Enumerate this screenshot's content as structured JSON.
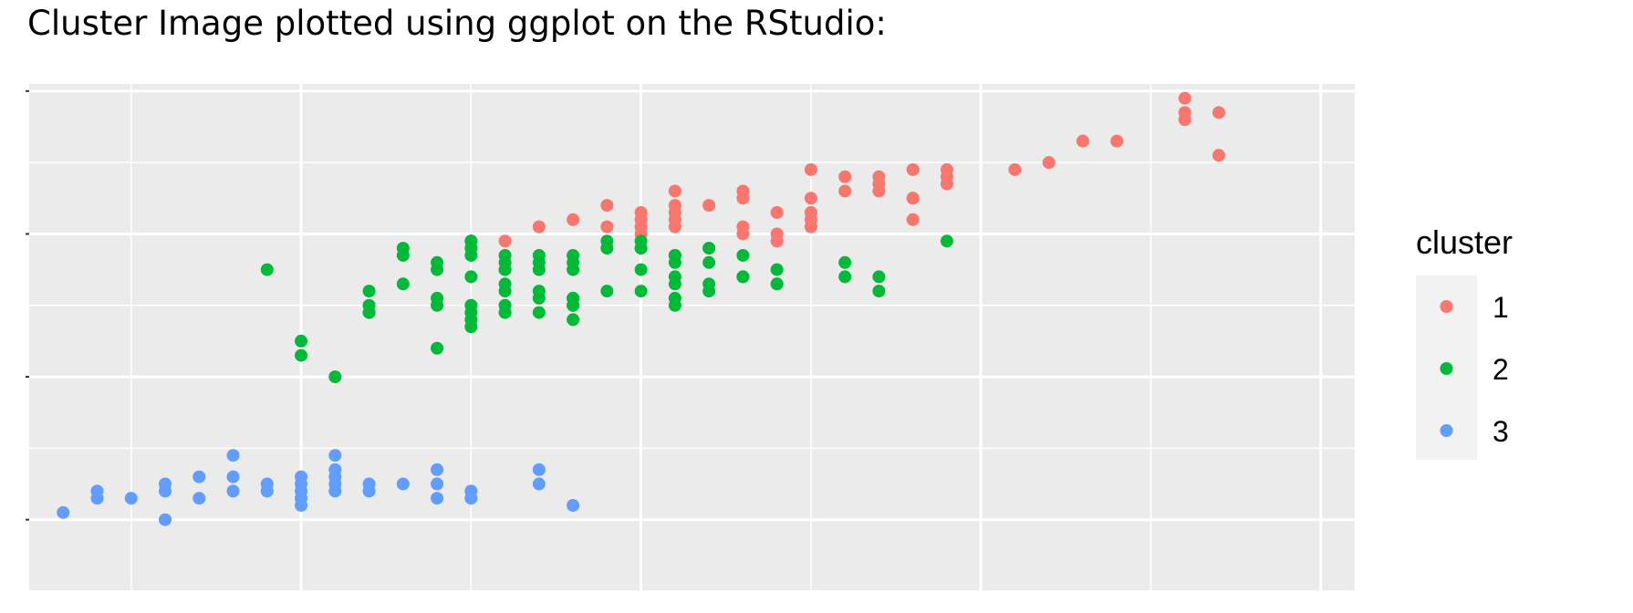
{
  "heading": "Cluster Image plotted using ggplot on the RStudio:",
  "colors": {
    "cluster_1": "#F8766D",
    "cluster_2": "#00BA38",
    "cluster_3": "#619CFF",
    "panel_background": "#EBEBEB",
    "grid": "#FFFFFF"
  },
  "chart_data": {
    "type": "scatter",
    "title": "",
    "xlabel": "",
    "ylabel": "",
    "xlim": [
      4.2,
      8.1
    ],
    "ylim": [
      0.0,
      7.1
    ],
    "x_major_breaks": [
      5,
      6,
      7,
      8
    ],
    "y_major_breaks": [
      1,
      3,
      5,
      7
    ],
    "grid": true,
    "legend": {
      "title": "cluster",
      "position": "right",
      "entries": [
        "1",
        "2",
        "3"
      ]
    },
    "series": [
      {
        "name": "1",
        "color": "#F8766D",
        "points": [
          [
            7.6,
            6.6
          ],
          [
            7.6,
            6.9
          ],
          [
            7.6,
            6.7
          ],
          [
            7.7,
            6.1
          ],
          [
            7.4,
            6.3
          ],
          [
            7.7,
            6.7
          ],
          [
            7.2,
            6.0
          ],
          [
            7.3,
            6.3
          ],
          [
            7.1,
            5.9
          ],
          [
            6.9,
            5.7
          ],
          [
            6.9,
            5.8
          ],
          [
            6.9,
            5.9
          ],
          [
            6.8,
            5.5
          ],
          [
            6.7,
            5.7
          ],
          [
            6.7,
            5.8
          ],
          [
            6.7,
            5.6
          ],
          [
            6.5,
            5.9
          ],
          [
            6.3,
            5.6
          ],
          [
            6.3,
            5.5
          ],
          [
            6.3,
            5.1
          ],
          [
            6.3,
            5.0
          ],
          [
            6.1,
            5.6
          ],
          [
            6.1,
            5.4
          ],
          [
            6.5,
            5.5
          ],
          [
            6.5,
            5.2
          ],
          [
            6.5,
            5.1
          ],
          [
            6.5,
            5.3
          ],
          [
            6.0,
            5.0
          ],
          [
            6.2,
            5.4
          ],
          [
            6.4,
            5.3
          ],
          [
            6.4,
            4.9
          ],
          [
            6.2,
            4.8
          ],
          [
            6.8,
            5.9
          ],
          [
            6.8,
            5.5
          ],
          [
            6.8,
            5.2
          ],
          [
            6.6,
            5.6
          ],
          [
            6.4,
            5.0
          ],
          [
            6.6,
            5.8
          ],
          [
            5.9,
            5.1
          ],
          [
            5.8,
            5.2
          ],
          [
            6.0,
            4.8
          ],
          [
            5.7,
            5.1
          ],
          [
            5.6,
            4.9
          ],
          [
            6.0,
            5.1
          ],
          [
            6.1,
            5.1
          ],
          [
            6.1,
            5.2
          ],
          [
            6.0,
            5.2
          ],
          [
            5.9,
            5.4
          ],
          [
            6.0,
            5.3
          ],
          [
            6.1,
            5.3
          ]
        ]
      },
      {
        "name": "2",
        "color": "#00BA38",
        "points": [
          [
            4.9,
            4.5
          ],
          [
            5.7,
            4.5
          ],
          [
            5.9,
            4.2
          ],
          [
            6.0,
            4.2
          ],
          [
            5.8,
            4.0
          ],
          [
            5.8,
            4.1
          ],
          [
            6.3,
            4.4
          ],
          [
            6.6,
            4.4
          ],
          [
            6.9,
            4.9
          ],
          [
            6.3,
            4.7
          ],
          [
            6.1,
            4.7
          ],
          [
            6.1,
            4.6
          ],
          [
            6.7,
            4.4
          ],
          [
            6.7,
            4.2
          ],
          [
            6.2,
            4.3
          ],
          [
            6.4,
            4.3
          ],
          [
            6.4,
            4.5
          ],
          [
            6.6,
            4.6
          ],
          [
            6.1,
            4.0
          ],
          [
            6.0,
            4.5
          ],
          [
            5.9,
            4.8
          ],
          [
            5.9,
            4.9
          ],
          [
            5.8,
            4.7
          ],
          [
            5.6,
            4.5
          ],
          [
            5.6,
            4.6
          ],
          [
            5.7,
            4.2
          ],
          [
            5.5,
            4.4
          ],
          [
            5.6,
            3.9
          ],
          [
            5.2,
            4.0
          ],
          [
            5.4,
            4.5
          ],
          [
            5.4,
            4.0
          ],
          [
            5.3,
            4.7
          ],
          [
            5.3,
            4.3
          ],
          [
            5.5,
            3.7
          ],
          [
            5.5,
            3.8
          ],
          [
            5.5,
            3.9
          ],
          [
            5.5,
            4.0
          ],
          [
            5.4,
            4.1
          ],
          [
            5.2,
            3.9
          ],
          [
            5.0,
            3.5
          ],
          [
            5.0,
            3.3
          ],
          [
            5.1,
            3.0
          ],
          [
            5.2,
            3.9
          ],
          [
            5.8,
            4.1
          ],
          [
            5.7,
            3.9
          ],
          [
            5.8,
            3.8
          ],
          [
            5.5,
            4.8
          ],
          [
            5.5,
            4.9
          ],
          [
            6.0,
            4.8
          ],
          [
            6.0,
            4.9
          ],
          [
            6.1,
            4.1
          ],
          [
            6.2,
            4.2
          ],
          [
            6.3,
            4.4
          ],
          [
            6.2,
            4.6
          ],
          [
            5.4,
            3.4
          ],
          [
            5.6,
            4.0
          ],
          [
            5.5,
            4.7
          ],
          [
            5.8,
            4.6
          ],
          [
            5.8,
            4.5
          ],
          [
            6.1,
            4.7
          ],
          [
            6.2,
            4.8
          ],
          [
            5.6,
            4.2
          ],
          [
            5.6,
            4.3
          ],
          [
            5.7,
            4.7
          ],
          [
            5.7,
            4.6
          ],
          [
            5.6,
            4.5
          ],
          [
            5.6,
            4.7
          ],
          [
            5.7,
            4.1
          ],
          [
            5.4,
            4.6
          ],
          [
            5.3,
            4.8
          ],
          [
            5.2,
            4.2
          ],
          [
            5.5,
            4.9
          ],
          [
            5.8,
            4.0
          ],
          [
            6.1,
            4.3
          ],
          [
            6.4,
            4.3
          ],
          [
            6.1,
            4.4
          ],
          [
            5.6,
            3.9
          ]
        ]
      },
      {
        "name": "3",
        "color": "#619CFF",
        "points": [
          [
            4.3,
            1.1
          ],
          [
            4.4,
            1.3
          ],
          [
            4.4,
            1.4
          ],
          [
            4.5,
            1.3
          ],
          [
            4.6,
            1.4
          ],
          [
            4.6,
            1.5
          ],
          [
            4.6,
            1.0
          ],
          [
            4.7,
            1.3
          ],
          [
            4.7,
            1.6
          ],
          [
            4.8,
            1.4
          ],
          [
            4.8,
            1.6
          ],
          [
            4.8,
            1.9
          ],
          [
            4.9,
            1.4
          ],
          [
            4.9,
            1.5
          ],
          [
            5.0,
            1.2
          ],
          [
            5.0,
            1.3
          ],
          [
            5.0,
            1.4
          ],
          [
            5.0,
            1.5
          ],
          [
            5.0,
            1.6
          ],
          [
            5.1,
            1.4
          ],
          [
            5.1,
            1.5
          ],
          [
            5.1,
            1.6
          ],
          [
            5.1,
            1.7
          ],
          [
            5.1,
            1.9
          ],
          [
            5.2,
            1.4
          ],
          [
            5.2,
            1.5
          ],
          [
            5.3,
            1.5
          ],
          [
            5.4,
            1.3
          ],
          [
            5.4,
            1.5
          ],
          [
            5.4,
            1.7
          ],
          [
            5.5,
            1.3
          ],
          [
            5.5,
            1.4
          ],
          [
            5.7,
            1.5
          ],
          [
            5.7,
            1.7
          ],
          [
            5.8,
            1.2
          ]
        ]
      }
    ]
  }
}
